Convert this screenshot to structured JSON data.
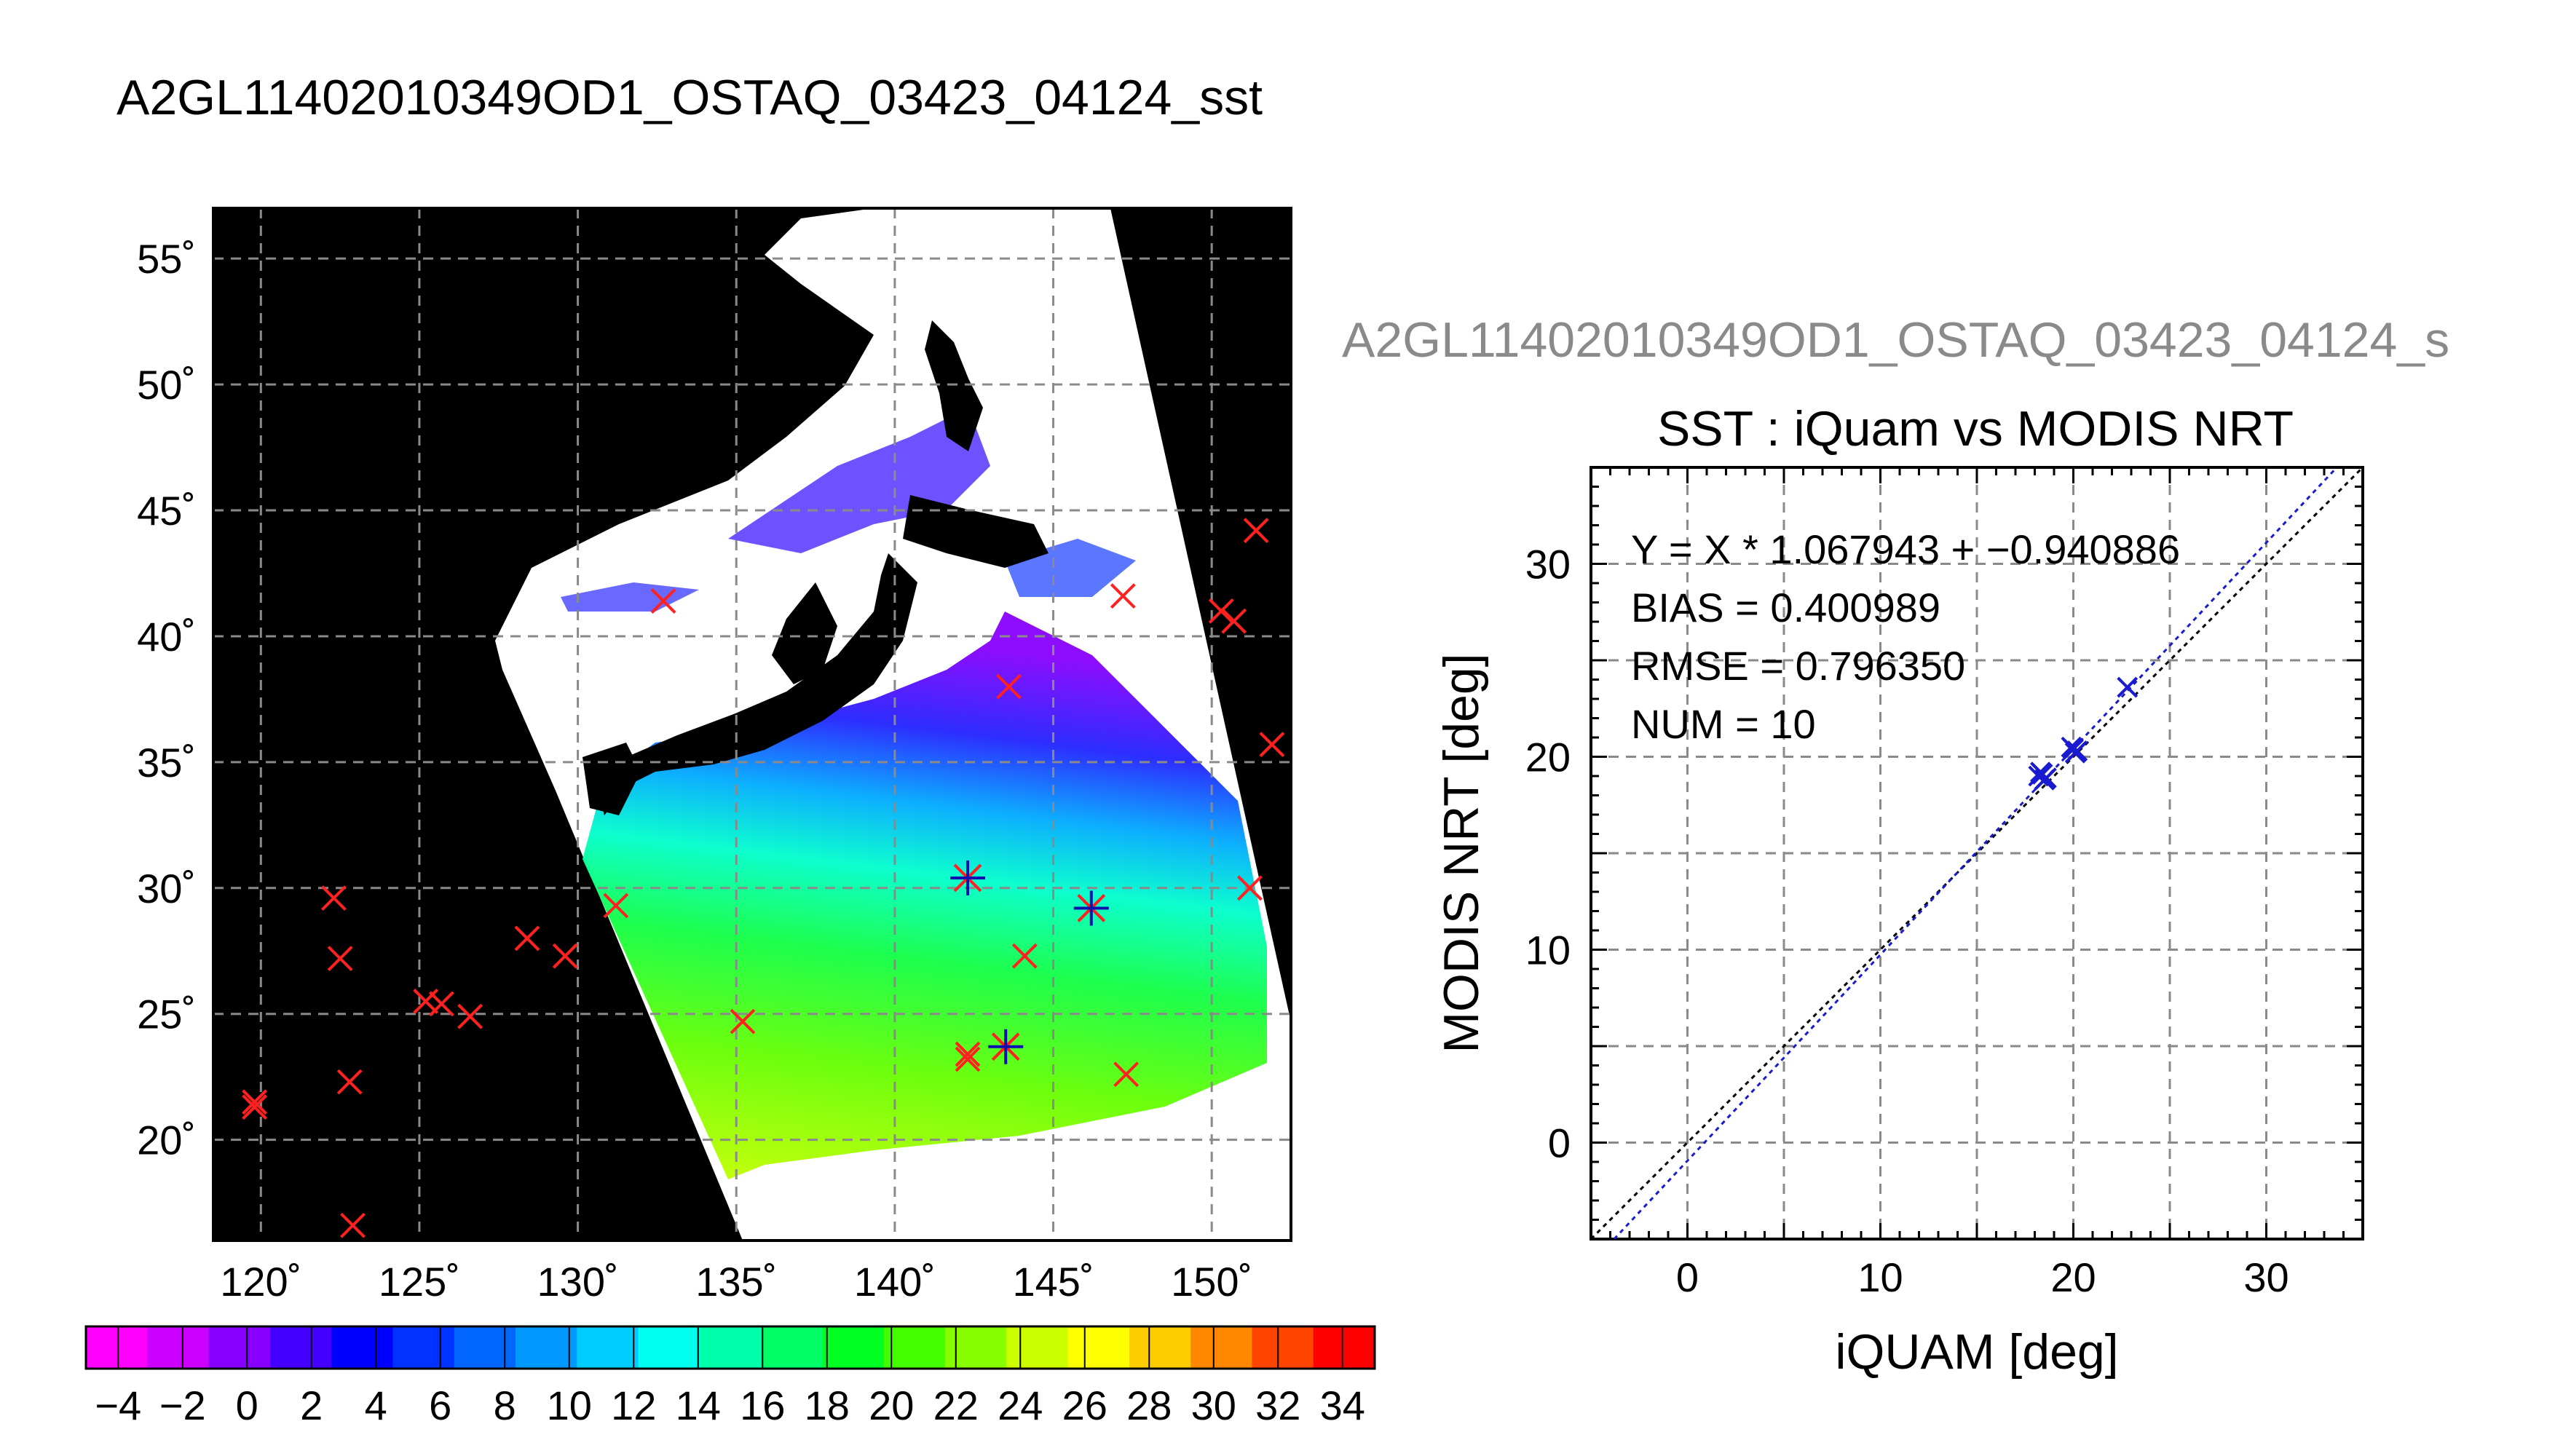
{
  "header": {
    "title": "A2GL11402010349OD1_OSTAQ_03423_04124_sst",
    "scatter_supertitle": "A2GL11402010349OD1_OSTAQ_03423_04124_s"
  },
  "map": {
    "lon_ticks": [
      120,
      125,
      130,
      135,
      140,
      145,
      150
    ],
    "lat_ticks": [
      20,
      25,
      30,
      35,
      40,
      45,
      50,
      55
    ],
    "lon_range": [
      118.5,
      152.5
    ],
    "lat_range": [
      16,
      57
    ],
    "grid": true,
    "cross_points": [
      [
        119.8,
        21.3
      ],
      [
        119.8,
        21.5
      ],
      [
        122.3,
        29.6
      ],
      [
        122.5,
        27.2
      ],
      [
        122.8,
        22.3
      ],
      [
        122.9,
        16.6
      ],
      [
        125.2,
        25.5
      ],
      [
        125.7,
        25.4
      ],
      [
        126.6,
        24.9
      ],
      [
        128.4,
        28.0
      ],
      [
        129.6,
        27.3
      ],
      [
        131.2,
        29.3
      ],
      [
        132.7,
        41.4
      ],
      [
        135.2,
        24.7
      ],
      [
        142.3,
        23.4
      ],
      [
        142.3,
        23.2
      ],
      [
        143.6,
        38.0
      ],
      [
        144.1,
        27.3
      ],
      [
        147.2,
        41.6
      ],
      [
        147.3,
        22.6
      ],
      [
        150.3,
        41.0
      ],
      [
        150.7,
        40.6
      ],
      [
        151.2,
        30.0
      ],
      [
        151.4,
        44.2
      ],
      [
        151.9,
        35.7
      ]
    ],
    "star_points": [
      [
        142.3,
        30.4
      ],
      [
        146.2,
        29.2
      ],
      [
        143.5,
        23.7
      ]
    ],
    "colors": {
      "match_marker": "#ff2020",
      "matched_marker": "#1010b0",
      "cloud": "#ffffff",
      "land": "#000000"
    }
  },
  "colorbar": {
    "tick_labels": [
      "−4",
      "−2",
      "0",
      "2",
      "4",
      "6",
      "8",
      "10",
      "12",
      "14",
      "16",
      "18",
      "20",
      "22",
      "24",
      "26",
      "28",
      "30",
      "32",
      "34"
    ],
    "min": -5,
    "max": 35,
    "step": 2,
    "colors": [
      "#ff00ff",
      "#cc00ff",
      "#8800ff",
      "#4400ff",
      "#0000ff",
      "#0033ff",
      "#0066ff",
      "#0099ff",
      "#00ccff",
      "#00ffee",
      "#00ffaa",
      "#00ff66",
      "#00ff22",
      "#44ff00",
      "#88ff00",
      "#ccff00",
      "#ffff00",
      "#ffcc00",
      "#ff8800",
      "#ff4400",
      "#ff0000"
    ]
  },
  "chart_data": {
    "type": "scatter",
    "title": "SST : iQuam vs MODIS NRT",
    "xlabel": "iQUAM [deg]",
    "ylabel": "MODIS NRT [deg]",
    "xlim": [
      -5,
      35
    ],
    "ylim": [
      -5,
      35
    ],
    "x_ticks": [
      0,
      10,
      20,
      30
    ],
    "y_ticks": [
      0,
      10,
      20,
      30
    ],
    "grid": true,
    "stats": {
      "equation": "Y = X * 1.067943 + −0.940886",
      "bias": "BIAS = 0.400989",
      "rmse": "RMSE = 0.796350",
      "num": "NUM = 10"
    },
    "fit": {
      "slope": 1.067943,
      "intercept": -0.940886,
      "color": "#1a1ad0"
    },
    "identity_color": "#000000",
    "points": [
      {
        "x": 18.4,
        "y": 19.1
      },
      {
        "x": 18.6,
        "y": 18.9
      },
      {
        "x": 18.2,
        "y": 19.0
      },
      {
        "x": 18.5,
        "y": 18.8
      },
      {
        "x": 18.3,
        "y": 19.2
      },
      {
        "x": 20.0,
        "y": 20.4
      },
      {
        "x": 20.2,
        "y": 20.3
      },
      {
        "x": 19.9,
        "y": 20.5
      },
      {
        "x": 20.1,
        "y": 20.2
      },
      {
        "x": 22.8,
        "y": 23.6
      }
    ],
    "point_color": "#1a1ad0"
  }
}
